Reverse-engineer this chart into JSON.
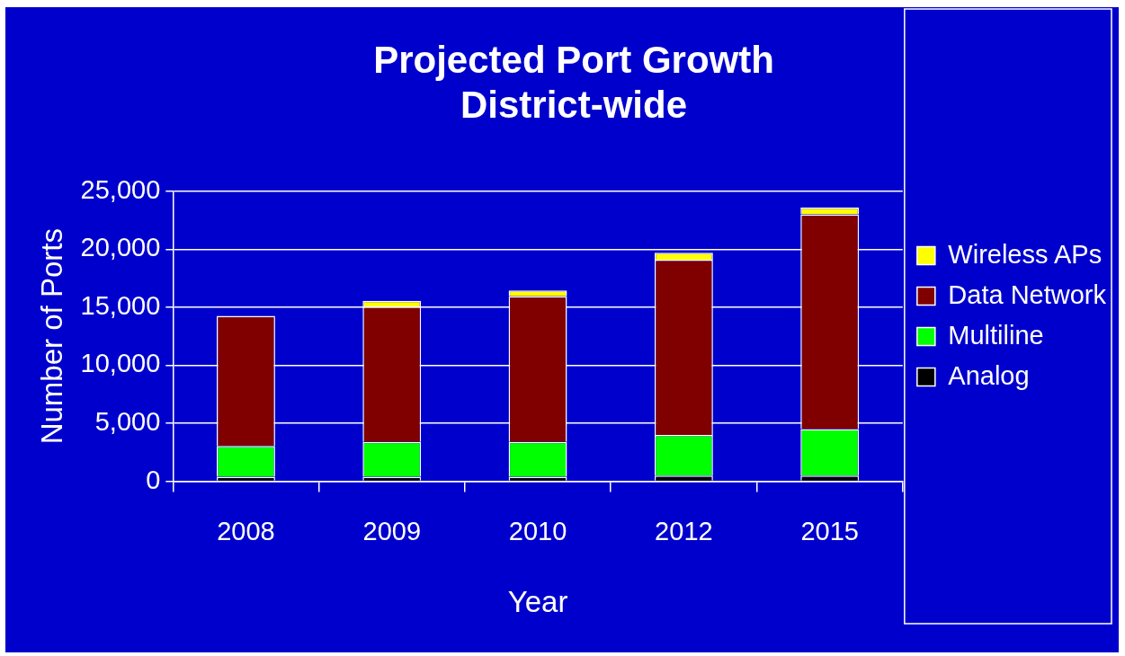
{
  "chart_data": {
    "type": "bar",
    "title": "Projected Port Growth\nDistrict-wide",
    "xlabel": "Year",
    "ylabel": "Number of Ports",
    "categories": [
      "2008",
      "2009",
      "2010",
      "2012",
      "2015"
    ],
    "stacked": true,
    "series": [
      {
        "name": "Analog",
        "color": "#000000",
        "values": [
          400,
          400,
          400,
          500,
          500
        ]
      },
      {
        "name": "Multiline",
        "color": "#00ff00",
        "values": [
          2650,
          3000,
          3000,
          3500,
          4000
        ]
      },
      {
        "name": "Data Network",
        "color": "#800000",
        "values": [
          11200,
          11650,
          12550,
          15100,
          18500
        ]
      },
      {
        "name": "Wireless APs",
        "color": "#ffff00",
        "values": [
          0,
          500,
          500,
          600,
          600
        ]
      }
    ],
    "ylim": [
      0,
      25000
    ],
    "yticks": [
      {
        "value": 0,
        "label": "0"
      },
      {
        "value": 5000,
        "label": "5,000"
      },
      {
        "value": 10000,
        "label": "10,000"
      },
      {
        "value": 15000,
        "label": "15,000"
      },
      {
        "value": 20000,
        "label": "20,000"
      },
      {
        "value": 25000,
        "label": "25,000"
      }
    ],
    "grid": "y",
    "legend": "right"
  }
}
